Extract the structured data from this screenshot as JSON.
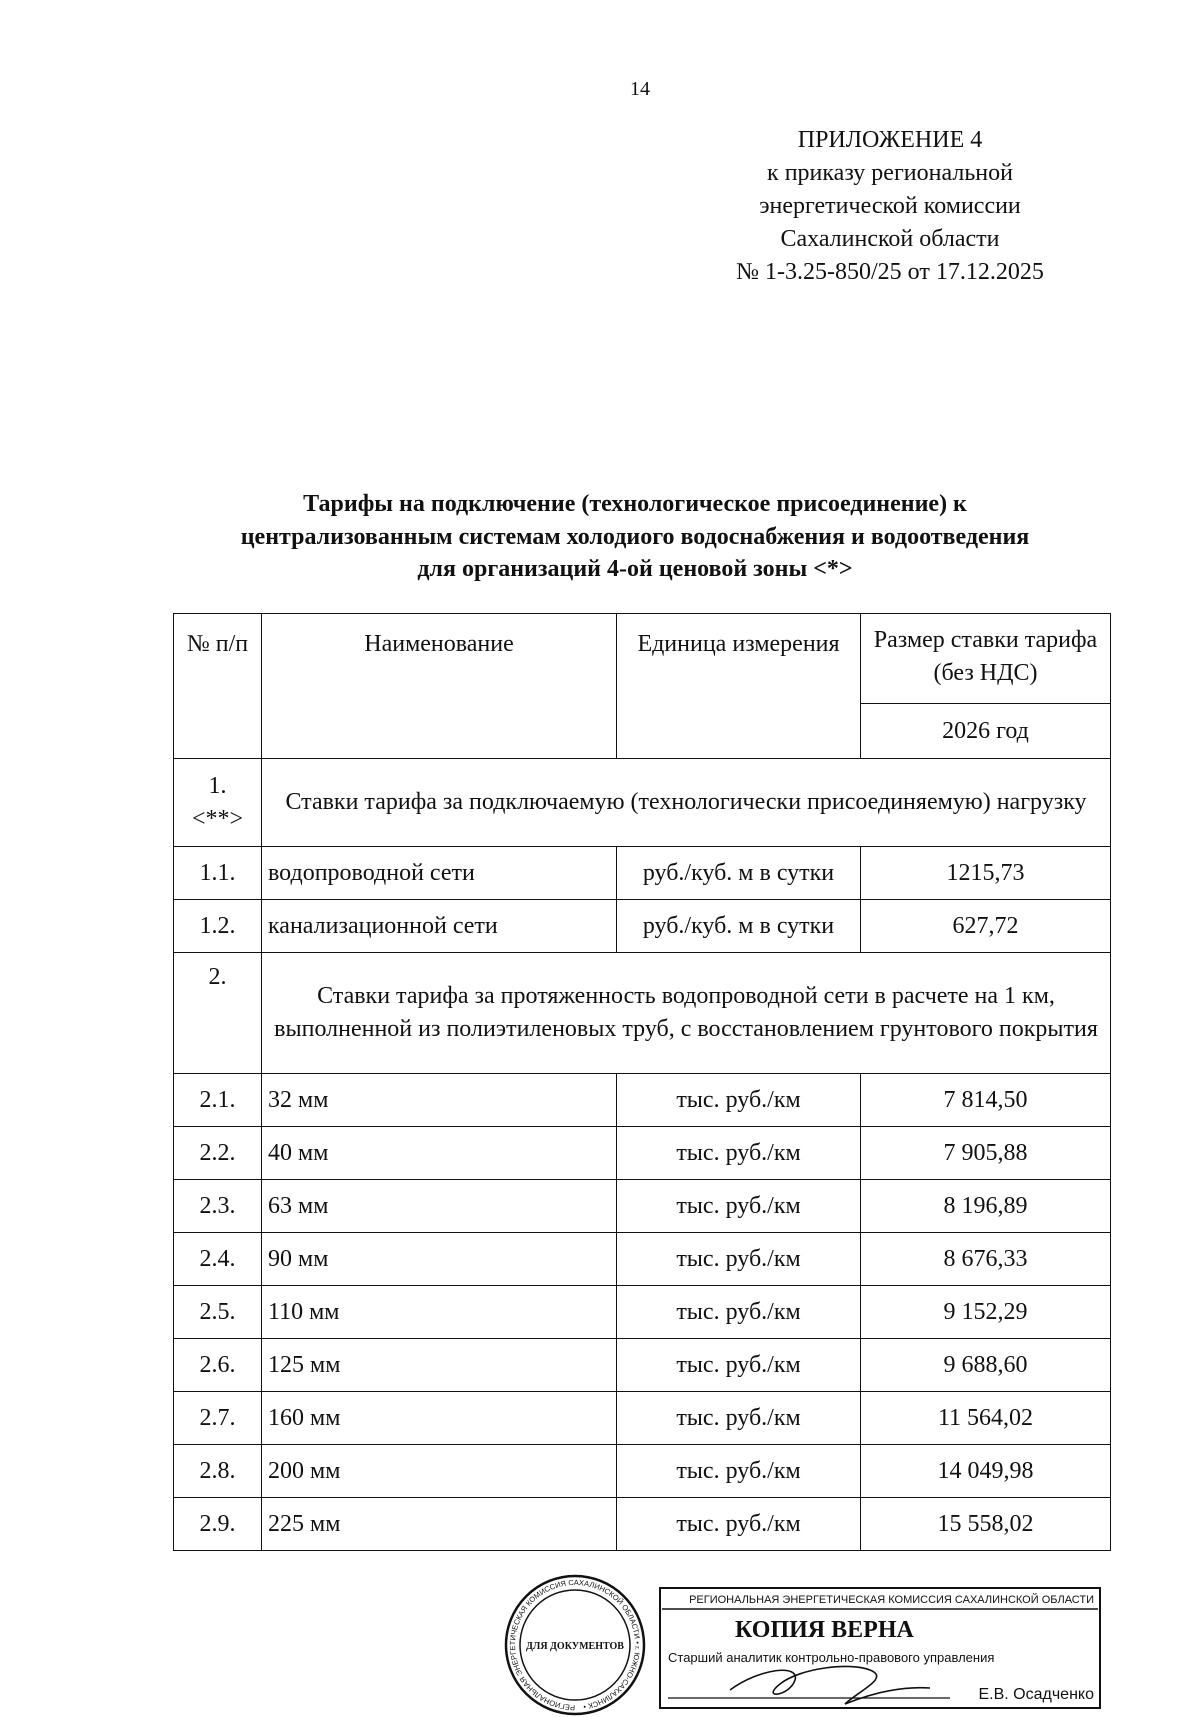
{
  "page_number": "14",
  "appendix": {
    "lines": [
      "ПРИЛОЖЕНИЕ 4",
      "к приказу региональной",
      "энергетической комиссии",
      "Сахалинской области",
      "№ 1-3.25-850/25 от 17.12.2025"
    ]
  },
  "title": {
    "lines": [
      "Тарифы на подключение (технологическое присоединение) к",
      "централизованным системам холодиого водоснабжения и водоотведения",
      "для организаций 4-ой ценовой зоны <*>"
    ]
  },
  "table": {
    "headers": {
      "num": "№ п/п",
      "name": "Наименование",
      "unit": "Единица измерения",
      "rate": "Размер ставки тарифа (без НДС)",
      "year": "2026 год"
    },
    "section1": {
      "num": "1. <**>",
      "title": "Ставки тарифа за подключаемую (технологически присоединяемую) нагрузку"
    },
    "section1_rows": [
      {
        "num": "1.1.",
        "name": "водопроводной сети",
        "unit": "руб./куб. м в сутки",
        "value": "1215,73"
      },
      {
        "num": "1.2.",
        "name": "канализационной сети",
        "unit": "руб./куб. м в сутки",
        "value": "627,72"
      }
    ],
    "section2": {
      "num": "2.",
      "title": "Ставки тарифа за протяженность водопроводной сети в расчете на 1 км, выполненной из полиэтиленовых труб, с восстановлением грунтового покрытия"
    },
    "section2_rows": [
      {
        "num": "2.1.",
        "name": "32 мм",
        "unit": "тыс. руб./км",
        "value": "7 814,50"
      },
      {
        "num": "2.2.",
        "name": "40 мм",
        "unit": "тыс. руб./км",
        "value": "7 905,88"
      },
      {
        "num": "2.3.",
        "name": "63 мм",
        "unit": "тыс. руб./км",
        "value": "8 196,89"
      },
      {
        "num": "2.4.",
        "name": "90 мм",
        "unit": "тыс. руб./км",
        "value": "8 676,33"
      },
      {
        "num": "2.5.",
        "name": "110 мм",
        "unit": "тыс. руб./км",
        "value": "9 152,29"
      },
      {
        "num": "2.6.",
        "name": "125 мм",
        "unit": "тыс. руб./км",
        "value": "9 688,60"
      },
      {
        "num": "2.7.",
        "name": "160 мм",
        "unit": "тыс. руб./км",
        "value": "11 564,02"
      },
      {
        "num": "2.8.",
        "name": "200 мм",
        "unit": "тыс. руб./км",
        "value": "14 049,98"
      },
      {
        "num": "2.9.",
        "name": "225 мм",
        "unit": "тыс. руб./км",
        "value": "15 558,02"
      }
    ]
  },
  "stamp": {
    "seal_text": "РЕГИОНАЛЬНАЯ ЭНЕРГЕТИЧЕСКАЯ КОМИССИЯ САХАЛИНСКОЙ ОБЛАСТИ • г. ЮЖНО-САХАЛИНСК •",
    "seal_center": "ДЛЯ ДОКУМЕНТОВ",
    "org": "РЕГИОНАЛЬНАЯ ЭНЕРГЕТИЧЕСКАЯ КОМИССИЯ САХАЛИНСКОЙ ОБЛАСТИ",
    "certified": "КОПИЯ ВЕРНА",
    "position": "Старший аналитик контрольно-правового управления",
    "name": "Е.В. Осадченко",
    "ink_color": "#111111"
  }
}
